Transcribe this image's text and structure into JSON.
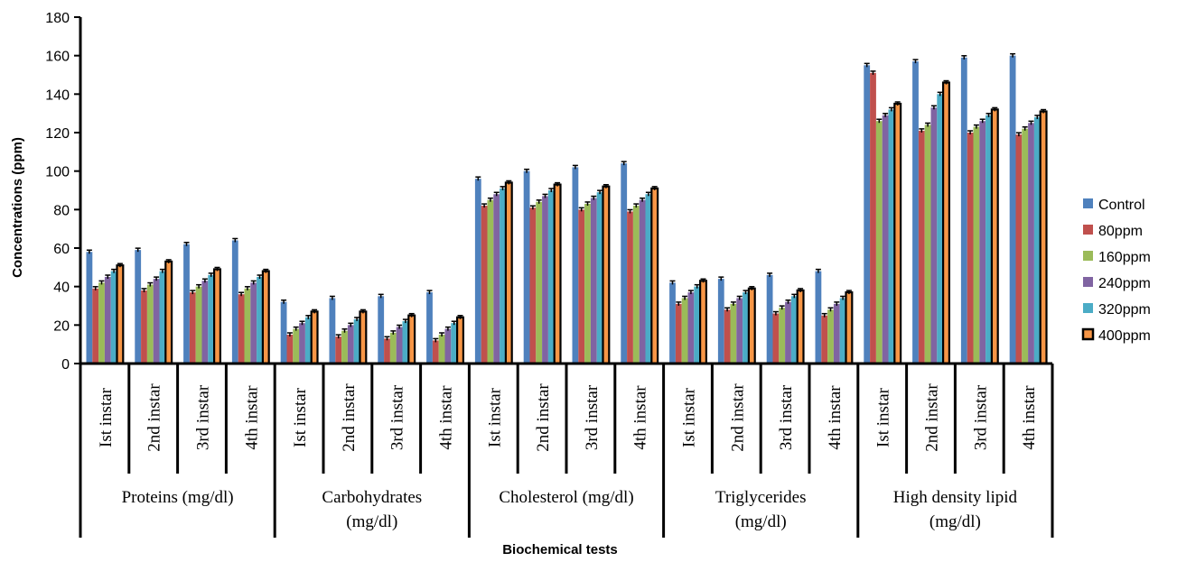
{
  "chart_data": {
    "type": "bar",
    "xlabel": "Biochemical tests",
    "ylabel": "Concentrations (ppm)",
    "ylim": [
      0,
      180
    ],
    "yticks": [
      0,
      20,
      40,
      60,
      80,
      100,
      120,
      140,
      160,
      180
    ],
    "grid": false,
    "legend_position": "right",
    "groups": [
      {
        "lines": [
          "Proteins (mg/dl)"
        ]
      },
      {
        "lines": [
          "Carbohydrates",
          "(mg/dl)"
        ]
      },
      {
        "lines": [
          "Cholesterol (mg/dl)"
        ]
      },
      {
        "lines": [
          "Triglycerides",
          "(mg/dl)"
        ]
      },
      {
        "lines": [
          "High density lipid",
          "(mg/dl)"
        ]
      }
    ],
    "subcategories": [
      "Ist instar",
      "2nd instar",
      "3rd instar",
      "4th instar"
    ],
    "series": [
      {
        "name": "Control",
        "color": "#4F81BD",
        "values": [
          58,
          59,
          62,
          64,
          32,
          34,
          35,
          37,
          96,
          100,
          102,
          104,
          42,
          44,
          46,
          48,
          155,
          157,
          159,
          160
        ]
      },
      {
        "name": "80ppm",
        "color": "#C0504D",
        "values": [
          39,
          38,
          37,
          36,
          15,
          14,
          13,
          12,
          82,
          81,
          80,
          79,
          31,
          28,
          26,
          25,
          151,
          121,
          120,
          119
        ]
      },
      {
        "name": "160ppm",
        "color": "#9BBB59",
        "values": [
          42,
          41,
          40,
          39,
          18,
          17,
          16,
          15,
          85,
          84,
          83,
          82,
          34,
          31,
          29,
          28,
          126,
          124,
          123,
          122
        ]
      },
      {
        "name": "240ppm",
        "color": "#8064A2",
        "values": [
          45,
          44,
          43,
          42,
          21,
          20,
          19,
          18,
          88,
          87,
          86,
          85,
          37,
          34,
          32,
          31,
          129,
          133,
          126,
          125
        ]
      },
      {
        "name": "320ppm",
        "color": "#4BACC6",
        "values": [
          48,
          48,
          46,
          45,
          24,
          23,
          22,
          21,
          91,
          90,
          89,
          88,
          40,
          37,
          35,
          34,
          132,
          140,
          129,
          128
        ]
      },
      {
        "name": "400ppm",
        "color": "#F79646",
        "values": [
          51,
          53,
          49,
          48,
          27,
          27,
          25,
          24,
          94,
          93,
          92,
          91,
          43,
          39,
          38,
          37,
          135,
          146,
          132,
          131
        ]
      }
    ]
  }
}
